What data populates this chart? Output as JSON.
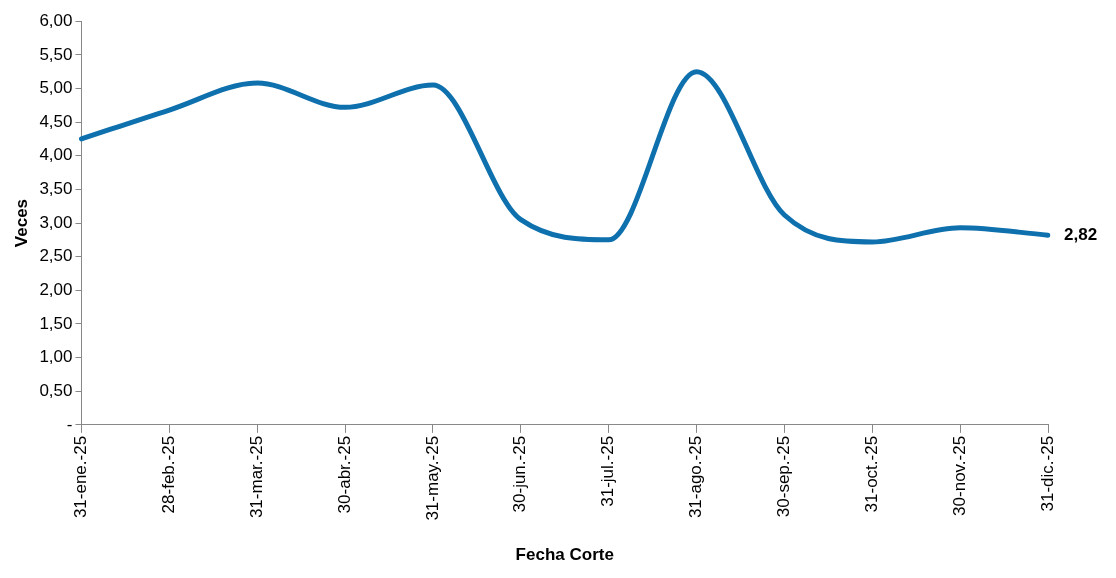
{
  "chart_data": {
    "type": "line",
    "xlabel": "Fecha Corte",
    "ylabel": "Veces",
    "categories": [
      "31-ene.-25",
      "28-feb.-25",
      "31-mar.-25",
      "30-abr.-25",
      "31-may.-25",
      "30-jun.-25",
      "31-jul.-25",
      "31-ago.-25",
      "30-sep.-25",
      "31-oct.-25",
      "30-nov.-25",
      "31-dic.-25"
    ],
    "series": [
      {
        "color": "#0f70ae",
        "values": [
          4.25,
          4.68,
          5.08,
          4.72,
          5.05,
          3.05,
          2.75,
          5.25,
          3.12,
          2.72,
          2.93,
          2.82
        ],
        "value_labels": [
          null,
          null,
          null,
          null,
          null,
          null,
          null,
          null,
          null,
          null,
          null,
          "2,82"
        ]
      }
    ],
    "ylim": [
      0,
      6
    ],
    "yticks": [
      {
        "value": 0,
        "label": "-"
      },
      {
        "value": 0.5,
        "label": "0,50"
      },
      {
        "value": 1,
        "label": "1,00"
      },
      {
        "value": 1.5,
        "label": "1,50"
      },
      {
        "value": 2,
        "label": "2,00"
      },
      {
        "value": 2.5,
        "label": "2,50"
      },
      {
        "value": 3,
        "label": "3,00"
      },
      {
        "value": 3.5,
        "label": "3,50"
      },
      {
        "value": 4,
        "label": "4,00"
      },
      {
        "value": 4.5,
        "label": "4,50"
      },
      {
        "value": 5,
        "label": "5,00"
      },
      {
        "value": 5.5,
        "label": "5,50"
      },
      {
        "value": 6,
        "label": "6,00"
      }
    ],
    "legend": false,
    "marker": "none",
    "line_style": "solid"
  }
}
